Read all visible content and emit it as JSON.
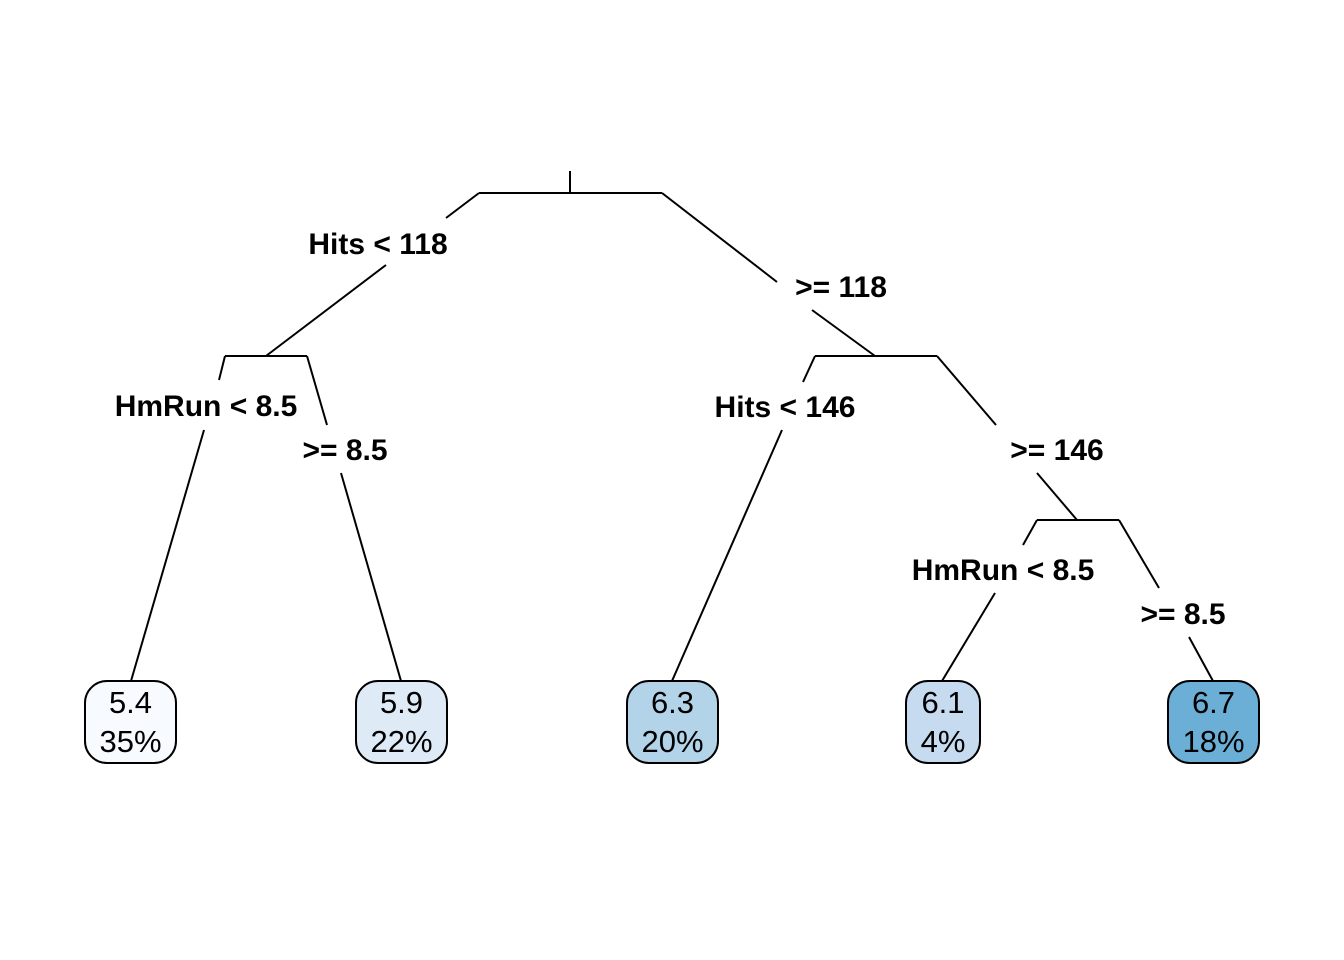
{
  "tree": {
    "splits": [
      {
        "id": "root-left",
        "label": "Hits < 118"
      },
      {
        "id": "root-right",
        "label": ">= 118"
      },
      {
        "id": "n2-left",
        "label": "HmRun < 8.5"
      },
      {
        "id": "n2-right",
        "label": ">= 8.5"
      },
      {
        "id": "n3-left",
        "label": "Hits < 146"
      },
      {
        "id": "n3-right",
        "label": ">= 146"
      },
      {
        "id": "n7-left",
        "label": "HmRun < 8.5"
      },
      {
        "id": "n7-right",
        "label": ">= 8.5"
      }
    ],
    "leaves": [
      {
        "value": "5.4",
        "percent": "35%",
        "fill": "#f7fbff"
      },
      {
        "value": "5.9",
        "percent": "22%",
        "fill": "#deebf7"
      },
      {
        "value": "6.3",
        "percent": "20%",
        "fill": "#b3d3e8"
      },
      {
        "value": "6.1",
        "percent": "4%",
        "fill": "#c6dbef"
      },
      {
        "value": "6.7",
        "percent": "18%",
        "fill": "#6baed6"
      }
    ]
  }
}
